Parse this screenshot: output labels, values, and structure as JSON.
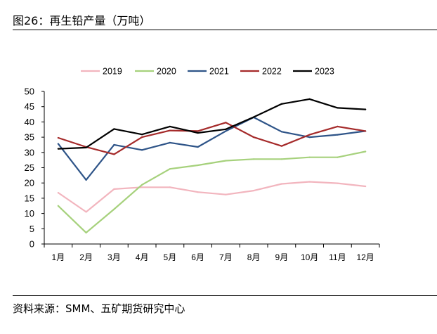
{
  "header": {
    "title": "图26：再生铅产量（万吨）"
  },
  "footer": {
    "source": "资料来源：SMM、五矿期货研究中心"
  },
  "chart_data": {
    "type": "line",
    "title": "再生铅产量（万吨）",
    "xlabel": "",
    "ylabel": "",
    "categories": [
      "1月",
      "2月",
      "3月",
      "4月",
      "5月",
      "6月",
      "7月",
      "8月",
      "9月",
      "10月",
      "11月",
      "12月"
    ],
    "ylim": [
      0,
      50
    ],
    "yticks": [
      0,
      5,
      10,
      15,
      20,
      25,
      30,
      35,
      40,
      45,
      50
    ],
    "legend_position": "top",
    "grid": false,
    "series": [
      {
        "name": "2019",
        "color": "#F2B5BE",
        "values": [
          16.8,
          10.5,
          18.0,
          18.6,
          18.6,
          17.0,
          16.2,
          17.5,
          19.7,
          20.4,
          19.9,
          18.9
        ]
      },
      {
        "name": "2020",
        "color": "#A6D17C",
        "values": [
          12.5,
          3.7,
          11.4,
          19.4,
          24.6,
          25.8,
          27.3,
          27.8,
          27.8,
          28.4,
          28.4,
          30.3
        ]
      },
      {
        "name": "2021",
        "color": "#2E5488",
        "values": [
          32.8,
          21.0,
          32.5,
          30.8,
          33.2,
          31.8,
          37.0,
          41.5,
          36.8,
          35.0,
          35.8,
          37.0
        ]
      },
      {
        "name": "2022",
        "color": "#A52A2A",
        "values": [
          34.8,
          31.8,
          29.4,
          35.0,
          37.2,
          37.0,
          39.8,
          35.0,
          32.1,
          35.8,
          38.5,
          37.0
        ]
      },
      {
        "name": "2023",
        "color": "#000000",
        "values": [
          31.2,
          31.6,
          37.7,
          35.9,
          38.5,
          36.4,
          37.6,
          41.6,
          45.9,
          47.5,
          44.6,
          44.1
        ]
      }
    ]
  }
}
